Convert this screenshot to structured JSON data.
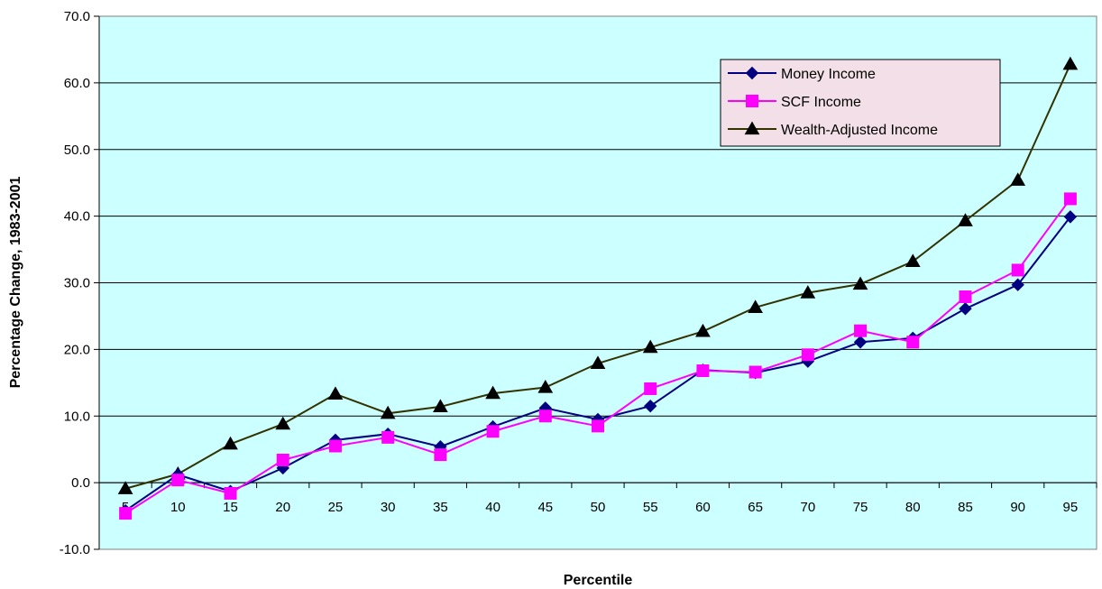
{
  "chart_data": {
    "type": "line",
    "title": "",
    "xlabel": "Percentile",
    "ylabel": "Percentage Change, 1983-2001",
    "categories": [
      "5",
      "10",
      "15",
      "20",
      "25",
      "30",
      "35",
      "40",
      "45",
      "50",
      "55",
      "60",
      "65",
      "70",
      "75",
      "80",
      "85",
      "90",
      "95"
    ],
    "ylim": [
      -10,
      70
    ],
    "yticks": [
      "-10.0",
      "0.0",
      "10.0",
      "20.0",
      "30.0",
      "40.0",
      "50.0",
      "60.0",
      "70.0"
    ],
    "grid": true,
    "legend_position": "top-right",
    "series": [
      {
        "name": "Money Income",
        "color": "#000080",
        "marker": "diamond",
        "values": [
          -4.2,
          1.2,
          -1.3,
          2.2,
          6.4,
          7.3,
          5.4,
          8.4,
          11.2,
          9.5,
          11.5,
          16.9,
          16.5,
          18.2,
          21.1,
          21.7,
          26.1,
          29.7,
          39.9
        ]
      },
      {
        "name": "SCF Income",
        "color": "#ff00ff",
        "marker": "square",
        "values": [
          -4.6,
          0.4,
          -1.6,
          3.4,
          5.5,
          6.8,
          4.2,
          7.7,
          10.0,
          8.5,
          14.1,
          16.8,
          16.6,
          19.2,
          22.8,
          21.1,
          27.9,
          31.9,
          42.6
        ]
      },
      {
        "name": "Wealth-Adjusted Income",
        "color": "#333300",
        "marker": "triangle",
        "values": [
          -0.9,
          1.3,
          5.8,
          8.8,
          13.3,
          10.4,
          11.4,
          13.4,
          14.3,
          17.9,
          20.3,
          22.7,
          26.3,
          28.5,
          29.8,
          33.2,
          39.3,
          45.4,
          62.8
        ]
      }
    ]
  }
}
